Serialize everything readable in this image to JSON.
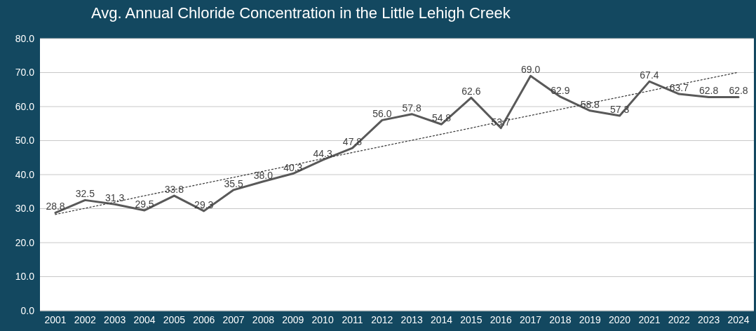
{
  "chart_data": {
    "type": "line",
    "title": "Avg. Annual Chloride Concentration in the Little Lehigh Creek",
    "categories": [
      "2001",
      "2002",
      "2003",
      "2004",
      "2005",
      "2006",
      "2007",
      "2008",
      "2009",
      "2010",
      "2011",
      "2012",
      "2013",
      "2014",
      "2015",
      "2016",
      "2017",
      "2018",
      "2019",
      "2020",
      "2021",
      "2022",
      "2023",
      "2024"
    ],
    "series": [
      {
        "color": "#595959",
        "line_style": "solid",
        "values": [
          28.8,
          32.5,
          31.3,
          29.5,
          33.8,
          29.3,
          35.5,
          38.0,
          40.3,
          44.3,
          47.8,
          56.0,
          57.8,
          54.8,
          62.6,
          53.7,
          69.0,
          62.9,
          58.8,
          57.3,
          67.4,
          63.7,
          62.8,
          62.8
        ],
        "value_labels": [
          "28.8",
          "32.5",
          "31.3",
          "29.5",
          "33.8",
          "29.3",
          "35.5",
          "38.0",
          "40.3",
          "44.3",
          "47.8",
          "56.0",
          "57.8",
          "54.8",
          "62.6",
          "53.7",
          "69.0",
          "62.9",
          "58.8",
          "57.3",
          "67.4",
          "63.7",
          "62.8",
          "62.8"
        ]
      },
      {
        "type": "line",
        "color": "#404040",
        "line_style": "dotted",
        "values": [
          28.3,
          30.1,
          31.9,
          33.8,
          35.6,
          37.4,
          39.2,
          41.0,
          42.8,
          44.7,
          46.5,
          48.3,
          50.1,
          51.9,
          53.7,
          55.6,
          57.4,
          59.2,
          61.0,
          62.8,
          64.6,
          66.5,
          68.3,
          70.1
        ]
      }
    ],
    "ylim": [
      0,
      80
    ],
    "yticks": [
      {
        "value": 0,
        "label": "0.0"
      },
      {
        "value": 10,
        "label": "10.0"
      },
      {
        "value": 20,
        "label": "20.0"
      },
      {
        "value": 30,
        "label": "30.0"
      },
      {
        "value": 40,
        "label": "40.0"
      },
      {
        "value": 50,
        "label": "50.0"
      },
      {
        "value": 60,
        "label": "60.0"
      },
      {
        "value": 70,
        "label": "70.0"
      },
      {
        "value": 80,
        "label": "80.0"
      }
    ],
    "grid": "y",
    "marker": "none"
  }
}
